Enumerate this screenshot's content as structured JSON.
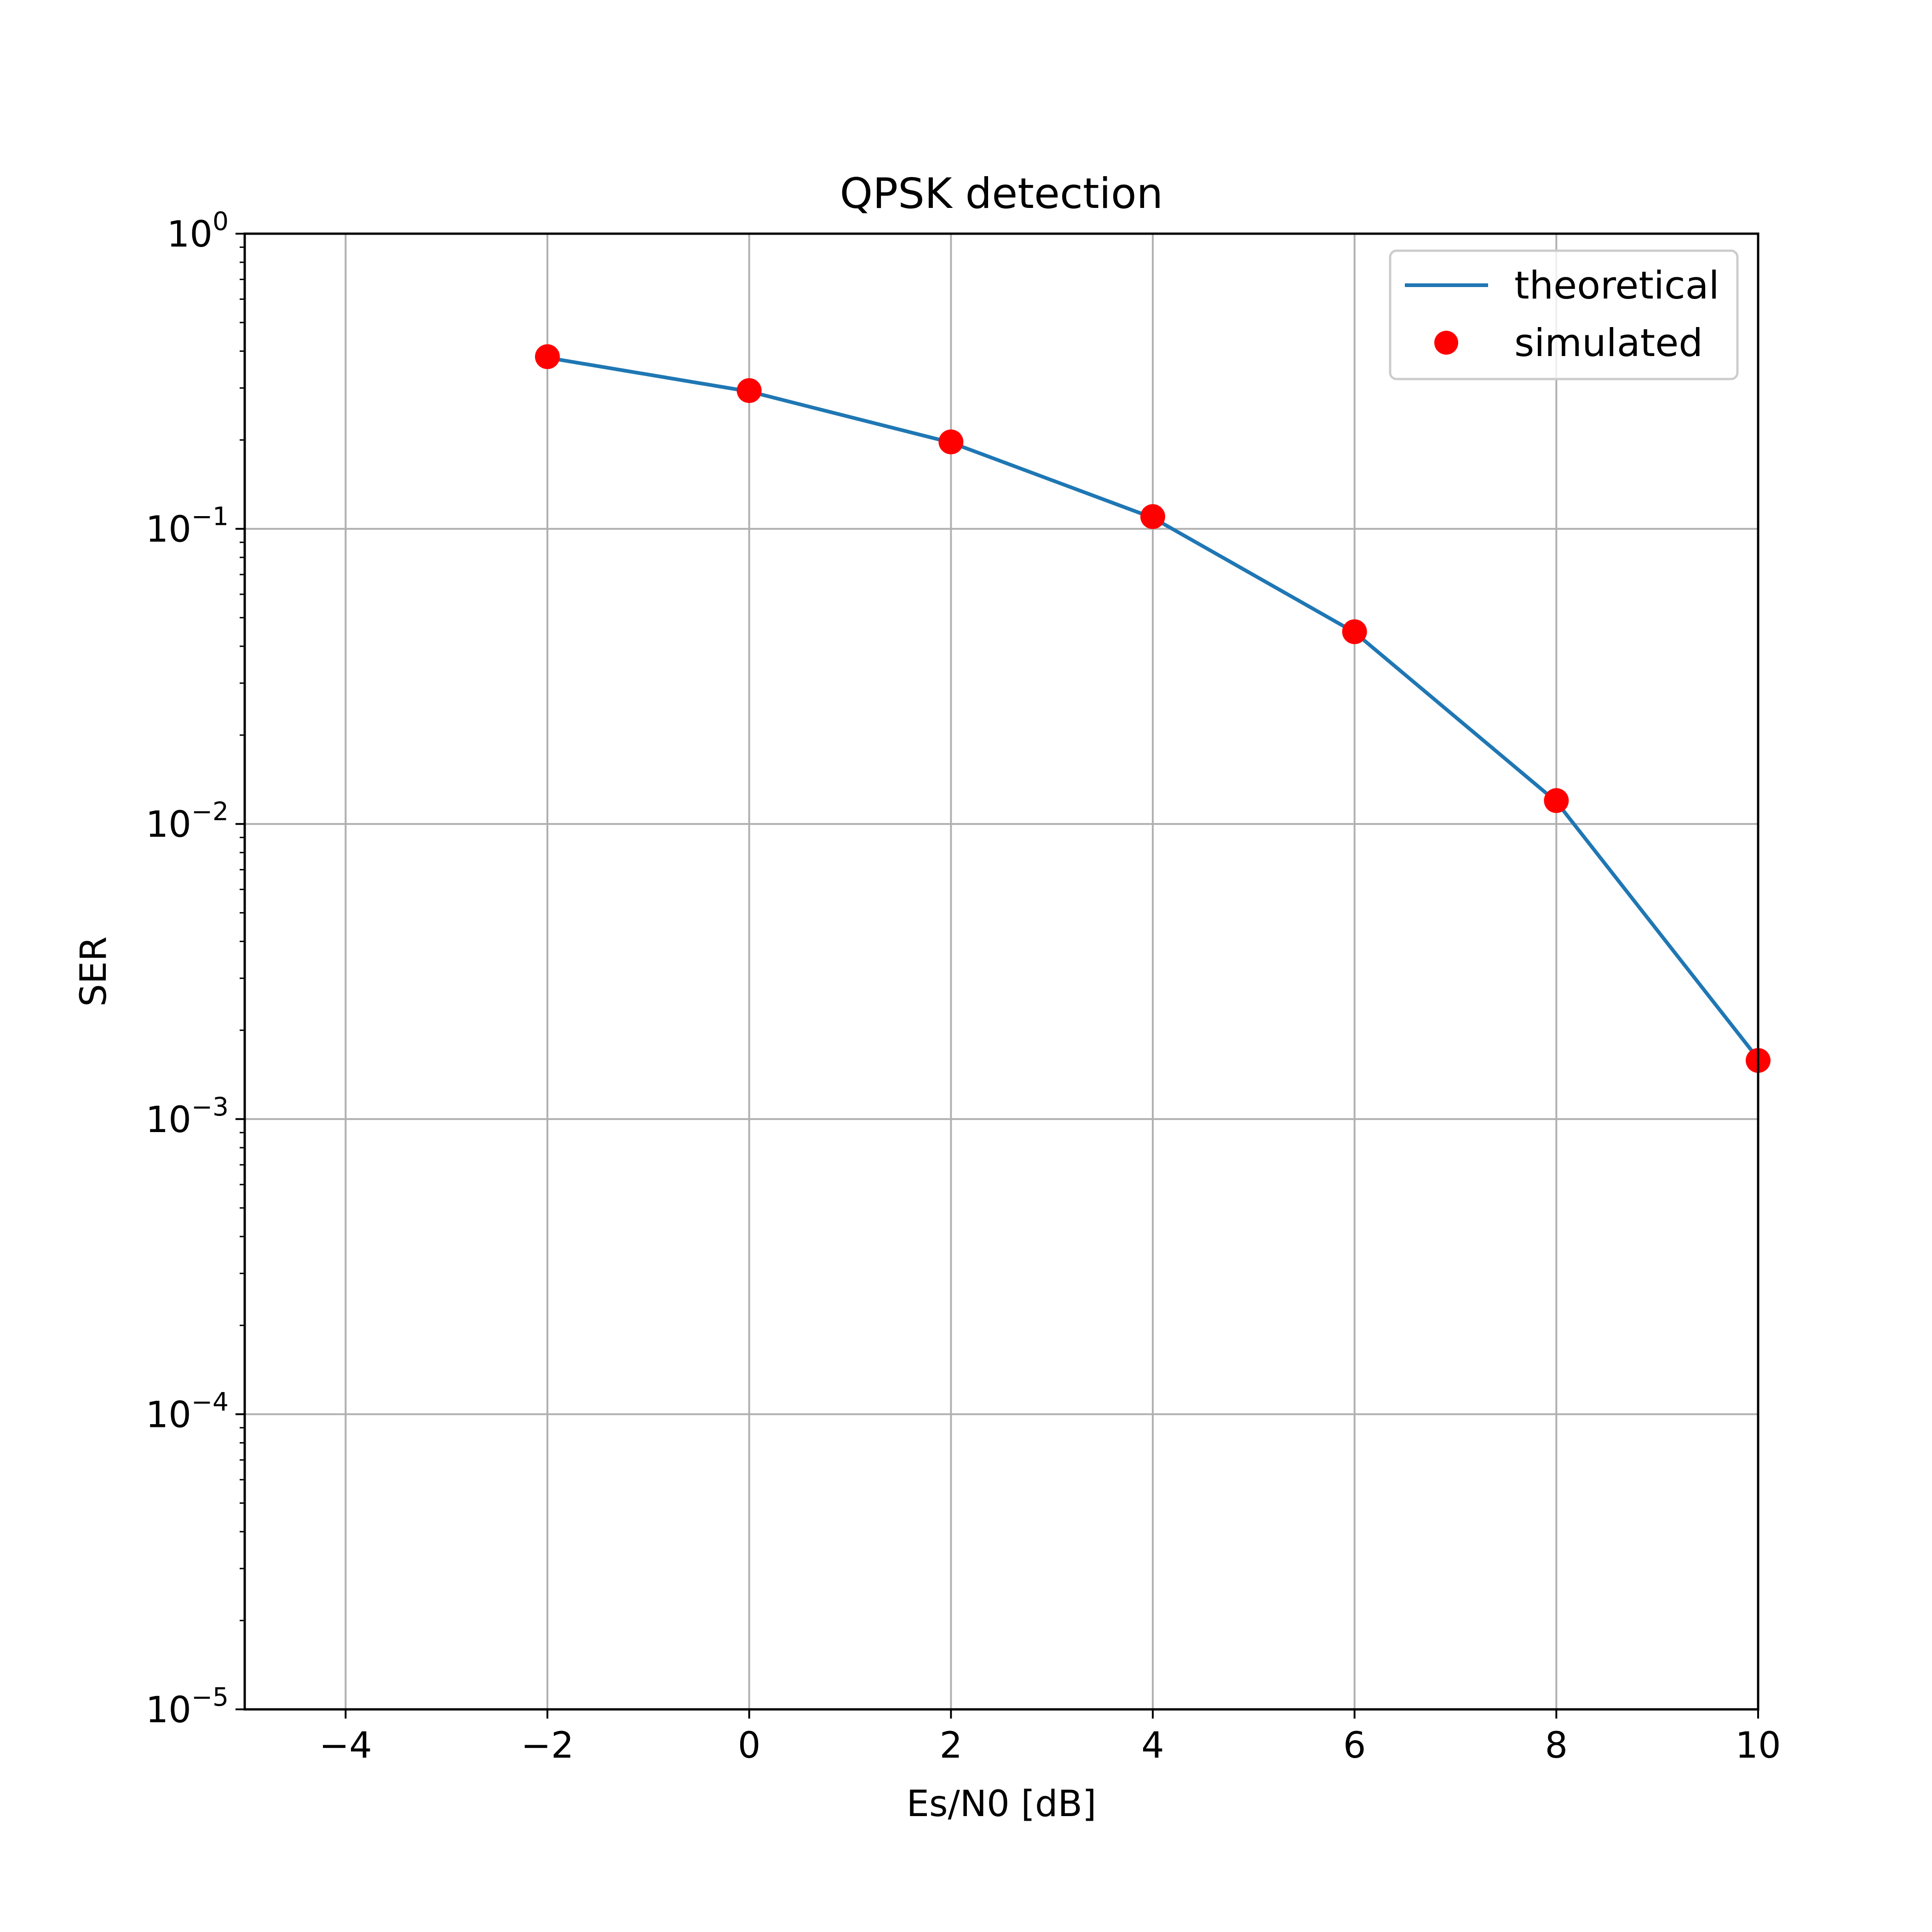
{
  "chart_data": {
    "type": "line",
    "title": "QPSK detection",
    "xlabel": "Es/N0 [dB]",
    "ylabel": "SER",
    "xlim": [
      -5,
      10
    ],
    "ylim": [
      1e-05,
      1
    ],
    "yscale": "log",
    "grid": true,
    "legend_position": "top-right",
    "xticks": [
      -4,
      -2,
      0,
      2,
      4,
      6,
      8,
      10
    ],
    "xtick_labels": [
      "−4",
      "−2",
      "0",
      "2",
      "4",
      "6",
      "8",
      "10"
    ],
    "yticks": [
      {
        "value": 1,
        "base": "10",
        "exp": "0"
      },
      {
        "value": 0.1,
        "base": "10",
        "exp": "−1"
      },
      {
        "value": 0.01,
        "base": "10",
        "exp": "−2"
      },
      {
        "value": 0.001,
        "base": "10",
        "exp": "−3"
      },
      {
        "value": 0.0001,
        "base": "10",
        "exp": "−4"
      },
      {
        "value": 1e-05,
        "base": "10",
        "exp": "−5"
      }
    ],
    "series": [
      {
        "name": "theoretical",
        "style": "line",
        "color": "#1f77b4",
        "x": [
          -2,
          0,
          2,
          4,
          6,
          8,
          10
        ],
        "y": [
          0.38,
          0.292,
          0.196,
          0.109,
          0.0446,
          0.0119,
          0.0016
        ]
      },
      {
        "name": "simulated",
        "style": "markers",
        "color": "#ff0000",
        "x": [
          -2,
          0,
          2,
          4,
          6,
          8,
          10
        ],
        "y": [
          0.383,
          0.294,
          0.197,
          0.11,
          0.0448,
          0.012,
          0.00158
        ]
      }
    ]
  }
}
